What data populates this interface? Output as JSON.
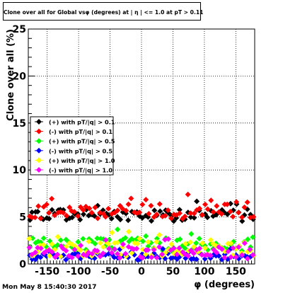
{
  "chart_data": {
    "type": "scatter",
    "title": "Clone  over all for Global vsφ (degrees) at | η | <= 1.0 at pT > 0.11",
    "xlabel": "φ (degrees)",
    "ylabel": "Clone  over all (%)",
    "xlim": [
      -180,
      180
    ],
    "ylim": [
      0,
      25
    ],
    "x_ticks": [
      -150,
      -100,
      -50,
      0,
      50,
      100,
      150
    ],
    "y_ticks": [
      0,
      5,
      10,
      15,
      20,
      25
    ],
    "grid": true,
    "legend_position": "middle-left",
    "series": [
      {
        "name": "(+) with pT/|q| > 0.1",
        "color": "#000000",
        "marker": "diamond",
        "mean": 5.2,
        "spread": 0.65
      },
      {
        "name": "(-) with pT/|q| > 0.1",
        "color": "#ff0000",
        "marker": "diamond",
        "mean": 5.6,
        "spread": 0.8
      },
      {
        "name": "(+) with pT/|q| > 0.5",
        "color": "#00ff00",
        "marker": "diamond",
        "mean": 2.1,
        "spread": 0.7
      },
      {
        "name": "(-) with pT/|q| > 0.5",
        "color": "#0000ff",
        "marker": "diamond",
        "mean": 0.8,
        "spread": 0.35
      },
      {
        "name": "(+) with pT/|q| > 1.0",
        "color": "#ffff00",
        "marker": "diamond",
        "mean": 1.6,
        "spread": 0.8
      },
      {
        "name": "(-) with pT/|q| > 1.0",
        "color": "#ff00ff",
        "marker": "diamond",
        "mean": 1.2,
        "spread": 0.65
      }
    ]
  },
  "footer": {
    "timestamp": "Mon May  8 15:40:30 2017"
  }
}
